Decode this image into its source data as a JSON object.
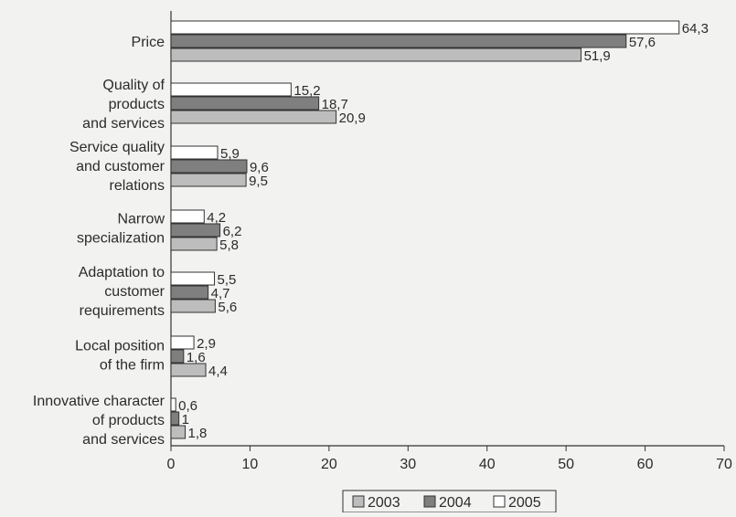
{
  "chart_data": {
    "type": "bar",
    "orientation": "horizontal",
    "categories": [
      [
        "Price"
      ],
      [
        "Quality of",
        "products",
        "and services"
      ],
      [
        "Service quality",
        "and customer",
        "relations"
      ],
      [
        "Narrow",
        "specialization"
      ],
      [
        "Adaptation to",
        "customer",
        "requirements"
      ],
      [
        "Local position",
        "of the firm"
      ],
      [
        "Innovative character",
        "of products",
        "and services"
      ]
    ],
    "series": [
      {
        "name": "2005",
        "values": [
          64.3,
          15.2,
          5.9,
          4.2,
          5.5,
          2.9,
          0.6
        ],
        "labels": [
          "64,3",
          "15,2",
          "5,9",
          "4,2",
          "5,5",
          "2,9",
          "0,6"
        ],
        "color": "#ffffff"
      },
      {
        "name": "2004",
        "values": [
          57.6,
          18.7,
          9.6,
          6.2,
          4.7,
          1.6,
          1
        ],
        "labels": [
          "57,6",
          "18,7",
          "9,6",
          "6,2",
          "4,7",
          "1,6",
          "1"
        ],
        "color": "#7f7f7f"
      },
      {
        "name": "2003",
        "values": [
          51.9,
          20.9,
          9.5,
          5.8,
          5.6,
          4.4,
          1.8
        ],
        "labels": [
          "51,9",
          "20,9",
          "9,5",
          "5,8",
          "5,6",
          "4,4",
          "1,8"
        ],
        "color": "#bdbdbd"
      }
    ],
    "legend_order": [
      "2003",
      "2004",
      "2005"
    ],
    "legend_position": "bottom-center",
    "xlim": [
      0,
      70
    ],
    "xticks": [
      0,
      10,
      20,
      30,
      40,
      50,
      60,
      70
    ],
    "grid": false,
    "title": "",
    "xlabel": "",
    "ylabel": ""
  }
}
